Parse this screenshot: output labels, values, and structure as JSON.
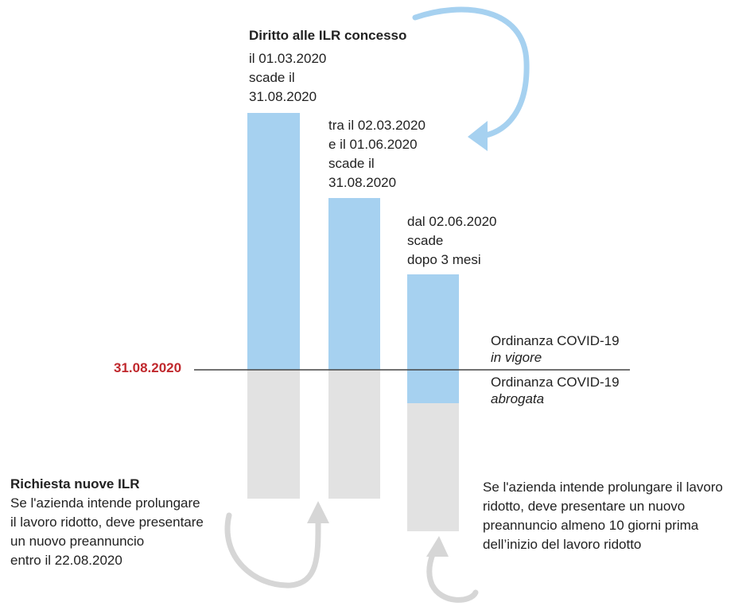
{
  "heading": "Diritto alle ILR concesso",
  "bars": [
    {
      "lines": [
        "il 01.03.2020",
        "scade il",
        "31.08.2020"
      ]
    },
    {
      "lines": [
        "tra il 02.03.2020",
        "e il 01.06.2020",
        "scade il",
        "31.08.2020"
      ]
    },
    {
      "lines": [
        "dal 02.06.2020",
        "scade",
        "dopo 3 mesi"
      ]
    }
  ],
  "reference_date": "31.08.2020",
  "status_in_force": {
    "title": "Ordinanza COVID-19",
    "state": "in vigore"
  },
  "status_repealed": {
    "title": "Ordinanza COVID-19",
    "state": "abrogata"
  },
  "left_note": {
    "title": "Richiesta nuove ILR",
    "lines": [
      "Se l'azienda intende prolungare",
      "il lavoro ridotto, deve presentare",
      "un nuovo preannuncio",
      "entro il 22.08.2020"
    ]
  },
  "right_note": {
    "lines": [
      "Se l'azienda intende prolungare il lavoro",
      "ridotto, deve presentare un nuovo",
      "preannuncio almeno 10 giorni prima",
      "dell’inizio del lavoro ridotto"
    ]
  },
  "colors": {
    "blue": "#a6d1f0",
    "grey": "#e2e2e2",
    "arrow_blue": "#a6d1f0",
    "arrow_grey": "#d6d6d6",
    "date_red": "#c0282d",
    "line": "#444444"
  },
  "icons": [
    "curved-arrow-blue-icon",
    "curved-arrow-grey-left-icon",
    "curved-arrow-grey-right-icon"
  ]
}
